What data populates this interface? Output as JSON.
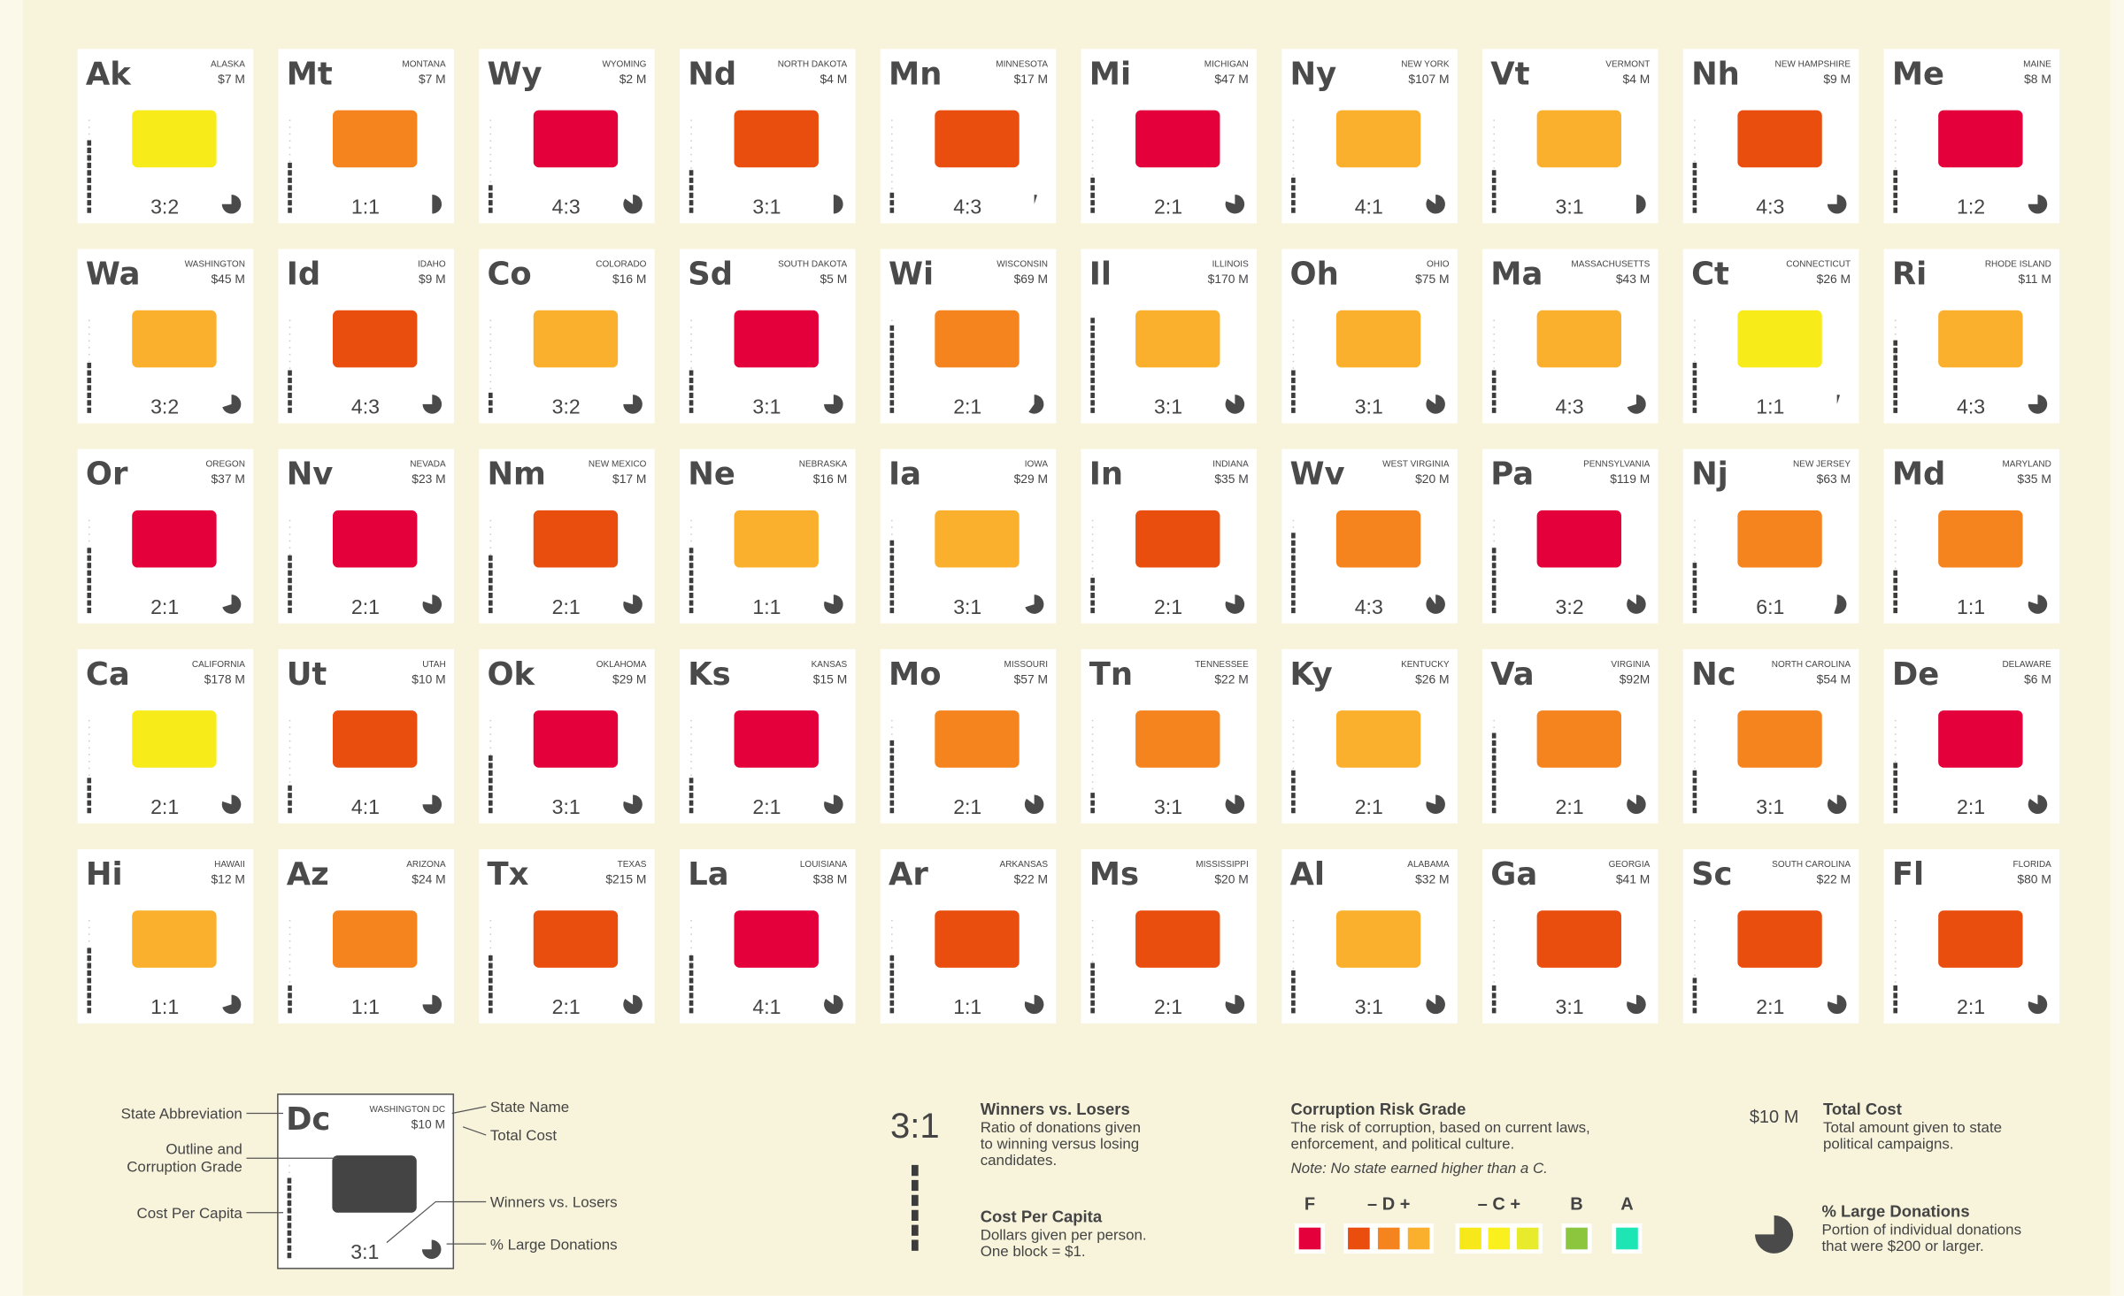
{
  "states": [
    {
      "abbr": "Ak",
      "name": "ALASKA",
      "cost": "$7 M",
      "ratio": "3:2",
      "color": "#f7ec1a",
      "per_capita": 10,
      "large_donations_pct": 75
    },
    {
      "abbr": "Mt",
      "name": "MONTANA",
      "cost": "$7 M",
      "ratio": "1:1",
      "color": "#f5841f",
      "per_capita": 7,
      "large_donations_pct": 50
    },
    {
      "abbr": "Wy",
      "name": "WYOMING",
      "cost": "$2 M",
      "ratio": "4:3",
      "color": "#e4003b",
      "per_capita": 4,
      "large_donations_pct": 85
    },
    {
      "abbr": "Nd",
      "name": "NORTH DAKOTA",
      "cost": "$4 M",
      "ratio": "3:1",
      "color": "#e94e0f",
      "per_capita": 6,
      "large_donations_pct": 50
    },
    {
      "abbr": "Mn",
      "name": "MINNESOTA",
      "cost": "$17 M",
      "ratio": "4:3",
      "color": "#e94e0f",
      "per_capita": 3,
      "large_donations_pct": 5
    },
    {
      "abbr": "Mi",
      "name": "MICHIGAN",
      "cost": "$47 M",
      "ratio": "2:1",
      "color": "#e4003b",
      "per_capita": 5,
      "large_donations_pct": 80
    },
    {
      "abbr": "Ny",
      "name": "NEW YORK",
      "cost": "$107 M",
      "ratio": "4:1",
      "color": "#fbb02d",
      "per_capita": 5,
      "large_donations_pct": 85
    },
    {
      "abbr": "Vt",
      "name": "VERMONT",
      "cost": "$4 M",
      "ratio": "3:1",
      "color": "#fbb02d",
      "per_capita": 6,
      "large_donations_pct": 50
    },
    {
      "abbr": "Nh",
      "name": "NEW HAMPSHIRE",
      "cost": "$9 M",
      "ratio": "4:3",
      "color": "#e94e0f",
      "per_capita": 7,
      "large_donations_pct": 75
    },
    {
      "abbr": "Me",
      "name": "MAINE",
      "cost": "$8 M",
      "ratio": "1:2",
      "color": "#e4003b",
      "per_capita": 6,
      "large_donations_pct": 75
    },
    {
      "abbr": "Wa",
      "name": "WASHINGTON",
      "cost": "$45 M",
      "ratio": "3:2",
      "color": "#fbb02d",
      "per_capita": 7,
      "large_donations_pct": 70
    },
    {
      "abbr": "Id",
      "name": "IDAHO",
      "cost": "$9 M",
      "ratio": "4:3",
      "color": "#e94e0f",
      "per_capita": 6,
      "large_donations_pct": 75
    },
    {
      "abbr": "Co",
      "name": "COLORADO",
      "cost": "$16 M",
      "ratio": "3:2",
      "color": "#fbb02d",
      "per_capita": 3,
      "large_donations_pct": 75
    },
    {
      "abbr": "Sd",
      "name": "SOUTH DAKOTA",
      "cost": "$5 M",
      "ratio": "3:1",
      "color": "#e4003b",
      "per_capita": 6,
      "large_donations_pct": 75
    },
    {
      "abbr": "Wi",
      "name": "WISCONSIN",
      "cost": "$69 M",
      "ratio": "2:1",
      "color": "#f5841f",
      "per_capita": 12,
      "large_donations_pct": 60
    },
    {
      "abbr": "Il",
      "name": "ILLINOIS",
      "cost": "$170 M",
      "ratio": "3:1",
      "color": "#fbb02d",
      "per_capita": 13,
      "large_donations_pct": 85
    },
    {
      "abbr": "Oh",
      "name": "OHIO",
      "cost": "$75 M",
      "ratio": "3:1",
      "color": "#fbb02d",
      "per_capita": 6,
      "large_donations_pct": 85
    },
    {
      "abbr": "Ma",
      "name": "MASSACHUSETTS",
      "cost": "$43 M",
      "ratio": "4:3",
      "color": "#fbb02d",
      "per_capita": 6,
      "large_donations_pct": 70
    },
    {
      "abbr": "Ct",
      "name": "CONNECTICUT",
      "cost": "$26 M",
      "ratio": "1:1",
      "color": "#f7ec1a",
      "per_capita": 7,
      "large_donations_pct": 5
    },
    {
      "abbr": "Ri",
      "name": "RHODE ISLAND",
      "cost": "$11 M",
      "ratio": "4:3",
      "color": "#fbb02d",
      "per_capita": 10,
      "large_donations_pct": 75
    },
    {
      "abbr": "Or",
      "name": "OREGON",
      "cost": "$37 M",
      "ratio": "2:1",
      "color": "#e4003b",
      "per_capita": 9,
      "large_donations_pct": 70
    },
    {
      "abbr": "Nv",
      "name": "NEVADA",
      "cost": "$23 M",
      "ratio": "2:1",
      "color": "#e4003b",
      "per_capita": 8,
      "large_donations_pct": 80
    },
    {
      "abbr": "Nm",
      "name": "NEW MEXICO",
      "cost": "$17 M",
      "ratio": "2:1",
      "color": "#e94e0f",
      "per_capita": 8,
      "large_donations_pct": 80
    },
    {
      "abbr": "Ne",
      "name": "NEBRASKA",
      "cost": "$16 M",
      "ratio": "1:1",
      "color": "#fbb02d",
      "per_capita": 9,
      "large_donations_pct": 80
    },
    {
      "abbr": "Ia",
      "name": "IOWA",
      "cost": "$29 M",
      "ratio": "3:1",
      "color": "#fbb02d",
      "per_capita": 10,
      "large_donations_pct": 70
    },
    {
      "abbr": "In",
      "name": "INDIANA",
      "cost": "$35 M",
      "ratio": "2:1",
      "color": "#e94e0f",
      "per_capita": 5,
      "large_donations_pct": 80
    },
    {
      "abbr": "Wv",
      "name": "WEST VIRGINIA",
      "cost": "$20 M",
      "ratio": "4:3",
      "color": "#f5841f",
      "per_capita": 11,
      "large_donations_pct": 90
    },
    {
      "abbr": "Pa",
      "name": "PENNSYLVANIA",
      "cost": "$119 M",
      "ratio": "3:2",
      "color": "#e4003b",
      "per_capita": 9,
      "large_donations_pct": 85
    },
    {
      "abbr": "Nj",
      "name": "NEW JERSEY",
      "cost": "$63 M",
      "ratio": "6:1",
      "color": "#f5841f",
      "per_capita": 7,
      "large_donations_pct": 55
    },
    {
      "abbr": "Md",
      "name": "MARYLAND",
      "cost": "$35 M",
      "ratio": "1:1",
      "color": "#f5841f",
      "per_capita": 6,
      "large_donations_pct": 80
    },
    {
      "abbr": "Ca",
      "name": "CALIFORNIA",
      "cost": "$178 M",
      "ratio": "2:1",
      "color": "#f7ec1a",
      "per_capita": 5,
      "large_donations_pct": 80
    },
    {
      "abbr": "Ut",
      "name": "UTAH",
      "cost": "$10 M",
      "ratio": "4:1",
      "color": "#e94e0f",
      "per_capita": 4,
      "large_donations_pct": 75
    },
    {
      "abbr": "Ok",
      "name": "OKLAHOMA",
      "cost": "$29 M",
      "ratio": "3:1",
      "color": "#e4003b",
      "per_capita": 8,
      "large_donations_pct": 80
    },
    {
      "abbr": "Ks",
      "name": "KANSAS",
      "cost": "$15 M",
      "ratio": "2:1",
      "color": "#e4003b",
      "per_capita": 5,
      "large_donations_pct": 80
    },
    {
      "abbr": "Mo",
      "name": "MISSOURI",
      "cost": "$57 M",
      "ratio": "2:1",
      "color": "#f5841f",
      "per_capita": 10,
      "large_donations_pct": 85
    },
    {
      "abbr": "Tn",
      "name": "TENNESSEE",
      "cost": "$22 M",
      "ratio": "3:1",
      "color": "#f5841f",
      "per_capita": 3,
      "large_donations_pct": 85
    },
    {
      "abbr": "Ky",
      "name": "KENTUCKY",
      "cost": "$26 M",
      "ratio": "2:1",
      "color": "#fbb02d",
      "per_capita": 6,
      "large_donations_pct": 80
    },
    {
      "abbr": "Va",
      "name": "VIRGINIA",
      "cost": "$92M",
      "ratio": "2:1",
      "color": "#f5841f",
      "per_capita": 11,
      "large_donations_pct": 85
    },
    {
      "abbr": "Nc",
      "name": "NORTH CAROLINA",
      "cost": "$54 M",
      "ratio": "3:1",
      "color": "#f5841f",
      "per_capita": 6,
      "large_donations_pct": 85
    },
    {
      "abbr": "De",
      "name": "DELAWARE",
      "cost": "$6 M",
      "ratio": "2:1",
      "color": "#e4003b",
      "per_capita": 7,
      "large_donations_pct": 85
    },
    {
      "abbr": "Hi",
      "name": "HAWAII",
      "cost": "$12 M",
      "ratio": "1:1",
      "color": "#fbb02d",
      "per_capita": 9,
      "large_donations_pct": 70
    },
    {
      "abbr": "Az",
      "name": "ARIZONA",
      "cost": "$24 M",
      "ratio": "1:1",
      "color": "#f5841f",
      "per_capita": 4,
      "large_donations_pct": 75
    },
    {
      "abbr": "Tx",
      "name": "TEXAS",
      "cost": "$215 M",
      "ratio": "2:1",
      "color": "#e94e0f",
      "per_capita": 8,
      "large_donations_pct": 85
    },
    {
      "abbr": "La",
      "name": "LOUISIANA",
      "cost": "$38 M",
      "ratio": "4:1",
      "color": "#e4003b",
      "per_capita": 8,
      "large_donations_pct": 85
    },
    {
      "abbr": "Ar",
      "name": "ARKANSAS",
      "cost": "$22 M",
      "ratio": "1:1",
      "color": "#e94e0f",
      "per_capita": 8,
      "large_donations_pct": 80
    },
    {
      "abbr": "Ms",
      "name": "MISSISSIPPI",
      "cost": "$20 M",
      "ratio": "2:1",
      "color": "#e94e0f",
      "per_capita": 7,
      "large_donations_pct": 80
    },
    {
      "abbr": "Al",
      "name": "ALABAMA",
      "cost": "$32 M",
      "ratio": "3:1",
      "color": "#fbb02d",
      "per_capita": 6,
      "large_donations_pct": 85
    },
    {
      "abbr": "Ga",
      "name": "GEORGIA",
      "cost": "$41 M",
      "ratio": "3:1",
      "color": "#e94e0f",
      "per_capita": 4,
      "large_donations_pct": 80
    },
    {
      "abbr": "Sc",
      "name": "SOUTH CAROLINA",
      "cost": "$22 M",
      "ratio": "2:1",
      "color": "#e94e0f",
      "per_capita": 5,
      "large_donations_pct": 80
    },
    {
      "abbr": "Fl",
      "name": "FLORIDA",
      "cost": "$80 M",
      "ratio": "2:1",
      "color": "#e94e0f",
      "per_capita": 4,
      "large_donations_pct": 80
    }
  ],
  "key": {
    "card": {
      "abbr": "Dc",
      "name": "WASHINGTON DC",
      "cost": "$10 M",
      "ratio": "3:1",
      "color": "#444444",
      "per_capita": 11,
      "large_donations_pct": 75
    },
    "labels": {
      "abbr": "State Abbreviation",
      "outline": [
        "Outline and",
        "Corruption Grade"
      ],
      "per_capita": "Cost Per Capita",
      "name": "State Name",
      "cost": "Total Cost",
      "ratio": "Winners vs. Losers",
      "donations": "% Large Donations"
    }
  },
  "legend": {
    "ratio": {
      "sample": "3:1",
      "title": "Winners vs. Losers",
      "lines": [
        "Ratio of donations given",
        "to winning versus losing",
        "candidates."
      ]
    },
    "per_capita": {
      "sample": 6,
      "title": "Cost Per Capita",
      "lines": [
        "Dollars given per person.",
        "One block = $1."
      ]
    },
    "grade": {
      "title": "Corruption Risk Grade",
      "lines": [
        "The risk of corruption, based on current laws,",
        "enforcement, and political culture."
      ],
      "note": "Note: No state earned higher than a C.",
      "groups": [
        {
          "label": "F",
          "colors": [
            "#e4003b"
          ]
        },
        {
          "label": "– D +",
          "colors": [
            "#e94e0f",
            "#f5841f",
            "#fbb02d"
          ]
        },
        {
          "label": "– C +",
          "colors": [
            "#f7e81a",
            "#f9f01e",
            "#e8eb2b"
          ]
        },
        {
          "label": "B",
          "colors": [
            "#8cc63f"
          ]
        },
        {
          "label": "A",
          "colors": [
            "#1de5b4"
          ]
        }
      ]
    },
    "cost": {
      "sample": "$10 M",
      "title": "Total Cost",
      "lines": [
        "Total amount given to state",
        "political campaigns."
      ]
    },
    "donations": {
      "sample": 75,
      "title": "% Large Donations",
      "lines": [
        "Portion of individual donations",
        "that were $200 or larger."
      ]
    }
  }
}
